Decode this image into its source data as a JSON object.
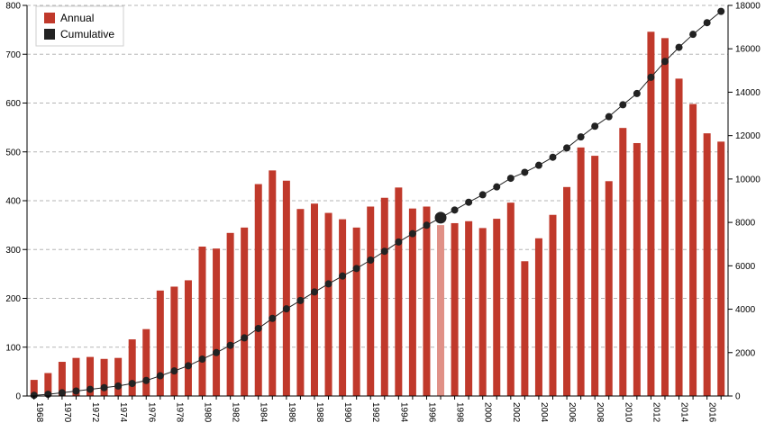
{
  "chart_data": {
    "type": "bar",
    "x": [
      1968,
      1969,
      1970,
      1971,
      1972,
      1973,
      1974,
      1975,
      1976,
      1977,
      1978,
      1979,
      1980,
      1981,
      1982,
      1983,
      1984,
      1985,
      1986,
      1987,
      1988,
      1989,
      1990,
      1991,
      1992,
      1993,
      1994,
      1995,
      1996,
      1997,
      1998,
      1999,
      2000,
      2001,
      2002,
      2003,
      2004,
      2005,
      2006,
      2007,
      2008,
      2009,
      2010,
      2011,
      2012,
      2013,
      2014,
      2015,
      2016,
      2017
    ],
    "x_tick_labels": [
      "1968",
      "1970",
      "1972",
      "1974",
      "1976",
      "1978",
      "1980",
      "1982",
      "1984",
      "1986",
      "1988",
      "1990",
      "1992",
      "1994",
      "1996",
      "1998",
      "2000",
      "2002",
      "2004",
      "2006",
      "2008",
      "2010",
      "2012",
      "2014",
      "2016"
    ],
    "series": [
      {
        "name": "Annual",
        "type": "bar",
        "axis": "left",
        "color": "#c0392b",
        "values": [
          33,
          47,
          70,
          78,
          80,
          76,
          78,
          116,
          137,
          216,
          224,
          237,
          306,
          302,
          334,
          345,
          434,
          462,
          441,
          383,
          394,
          375,
          362,
          345,
          388,
          406,
          427,
          384,
          388,
          350,
          354,
          358,
          344,
          363,
          396,
          276,
          323,
          371,
          428,
          509,
          492,
          440,
          549,
          518,
          746,
          733,
          650,
          598,
          538,
          521
        ]
      },
      {
        "name": "Cumulative",
        "type": "line",
        "axis": "right",
        "color": "#222222",
        "values": [
          33,
          80,
          150,
          228,
          308,
          384,
          462,
          578,
          715,
          931,
          1155,
          1392,
          1698,
          2000,
          2334,
          2679,
          3113,
          3575,
          4016,
          4399,
          4793,
          5168,
          5530,
          5875,
          6263,
          6669,
          7096,
          7480,
          7868,
          8218,
          8572,
          8930,
          9274,
          9637,
          10033,
          10309,
          10632,
          11003,
          11431,
          11940,
          12432,
          12872,
          13421,
          13939,
          14685,
          15418,
          16068,
          16666,
          17204,
          17725
        ]
      }
    ],
    "highlight_year": 1997,
    "highlight_bar_color": "#e09187",
    "yleft_ticks": [
      "0",
      "100",
      "200",
      "300",
      "400",
      "500",
      "600",
      "700",
      "800"
    ],
    "yright_ticks": [
      "0",
      "2000",
      "4000",
      "6000",
      "8000",
      "10000",
      "12000",
      "14000",
      "16000",
      "18000"
    ],
    "ylim_left": [
      0,
      800
    ],
    "ylim_right": [
      0,
      18000
    ],
    "grid": true,
    "legend_position": "top-left",
    "legend": [
      "Annual",
      "Cumulative"
    ],
    "title": "",
    "xlabel": "",
    "ylabel": ""
  }
}
